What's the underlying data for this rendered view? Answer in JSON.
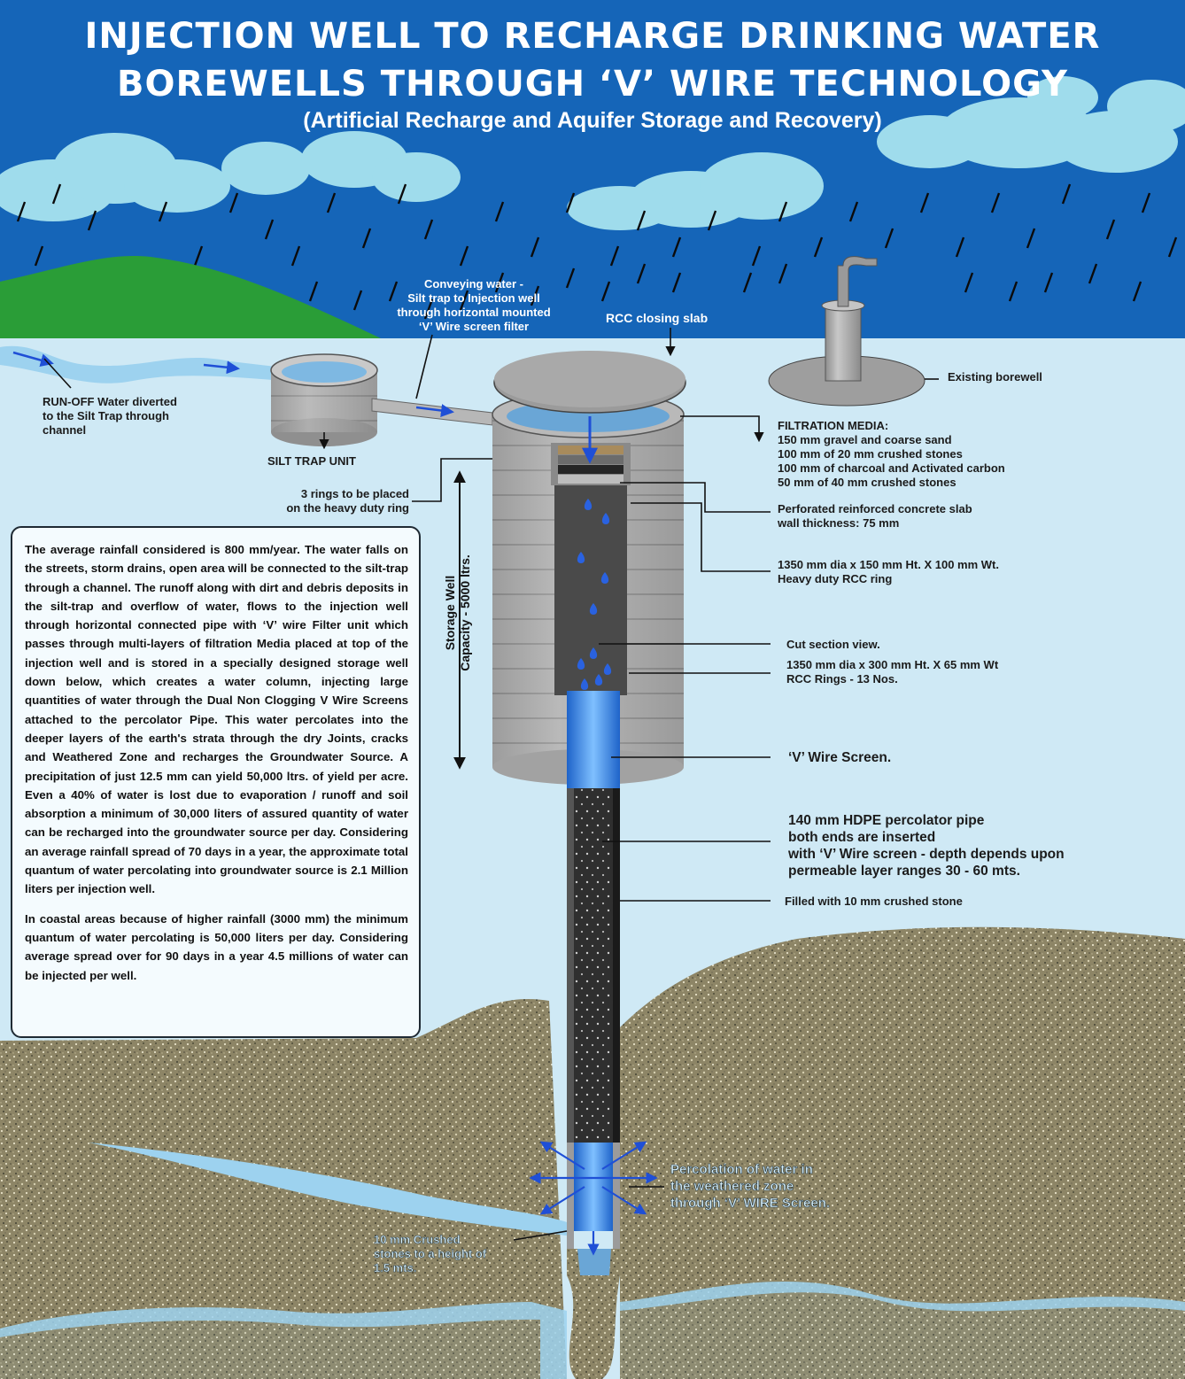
{
  "title": {
    "line1": "INJECTION WELL TO RECHARGE DRINKING WATER",
    "line2": "BOREWELLS THROUGH ‘V’ WIRE TECHNOLOGY",
    "line3": "(Artificial Recharge and Aquifer Storage and Recovery)"
  },
  "labels": {
    "runoff": [
      "RUN-OFF Water diverted",
      "to the Silt Trap through",
      "channel"
    ],
    "silt_trap": "SILT TRAP UNIT",
    "conveying": [
      "Conveying water -",
      "Silt trap to Injection well",
      "through horizontal mounted",
      "‘V’ Wire screen filter"
    ],
    "rcc_slab": "RCC closing slab",
    "existing_borewell": "Existing borewell",
    "three_rings": [
      "3 rings to be placed",
      "on the heavy duty ring"
    ],
    "filtration_title": "FILTRATION MEDIA:",
    "filtration_items": [
      "150 mm gravel and coarse sand",
      "100 mm of 20 mm crushed stones",
      "100 mm of charcoal and Activated carbon",
      "50 mm of 40 mm crushed stones"
    ],
    "perforated": [
      "Perforated reinforced concrete slab",
      "wall thickness: 75 mm"
    ],
    "heavy_ring": [
      "1350 mm dia x 150 mm Ht. X 100 mm Wt.",
      "Heavy duty RCC ring"
    ],
    "cut_section": "Cut section view.",
    "rcc_rings": [
      "1350 mm dia x 300 mm Ht. X 65 mm Wt",
      "RCC Rings - 13 Nos."
    ],
    "v_wire": "‘V’ Wire Screen.",
    "hdpe": [
      "140 mm HDPE percolator pipe",
      "both ends are inserted",
      "with ‘V’ Wire screen - depth depends upon",
      "permeable layer ranges 30 - 60 mts."
    ],
    "filled": "Filled with 10 mm crushed stone",
    "storage_well": [
      "Storage Well",
      "Capacity - 5000 ltrs."
    ],
    "percolation": [
      "Percolation of water in",
      "the weathered zone",
      "through ‘V’ WIRE Screen."
    ],
    "crushed_stones": [
      "10 mm Crushed",
      "stones to a height of",
      "1.5 mts."
    ]
  },
  "info": {
    "para1": "The average rainfall considered is 800 mm/year. The water falls on the streets, storm drains, open area will be connected to the silt-trap through a channel. The runoff along with dirt and debris deposits in the silt-trap and overflow of water, flows to the injection well through horizontal connected pipe with ‘V’ wire Filter unit which passes through multi-layers of filtration Media placed at top of the injection well and is stored in a specially designed storage well down below, which creates a water column, injecting large quantities of water through the Dual Non Clogging V Wire Screens attached to the percolator Pipe. This water percolates into the deeper layers of the earth's strata through the dry Joints, cracks and Weathered Zone and recharges the Groundwater Source. A precipitation of just 12.5 mm can yield 50,000 ltrs. of yield per acre. Even a 40% of water is lost due to evaporation / runoff and soil absorption a minimum of 30,000 liters of assured quantity of water can be recharged into the groundwater source per day. Considering an average rainfall spread of 70 days in a year, the approximate total quantum of water percolating into groundwater source is 2.1 Million liters per injection well.",
    "para2_lead": "In coastal areas",
    "para2_rest": " because of higher rainfall (3000 mm) the minimum quantum of water percolating is 50,000 liters per day. Considering average spread over for 90 days in a year 4.5 millions of water can be injected per well."
  },
  "colors": {
    "sky": "#1565b8",
    "ground_water": "#cfe9f5",
    "hill": "#2a9d37",
    "soil": "#8c8463",
    "concrete": "#a9a9a9",
    "pipe": "#2e2e2e",
    "water_blue": "#2a7de1"
  }
}
